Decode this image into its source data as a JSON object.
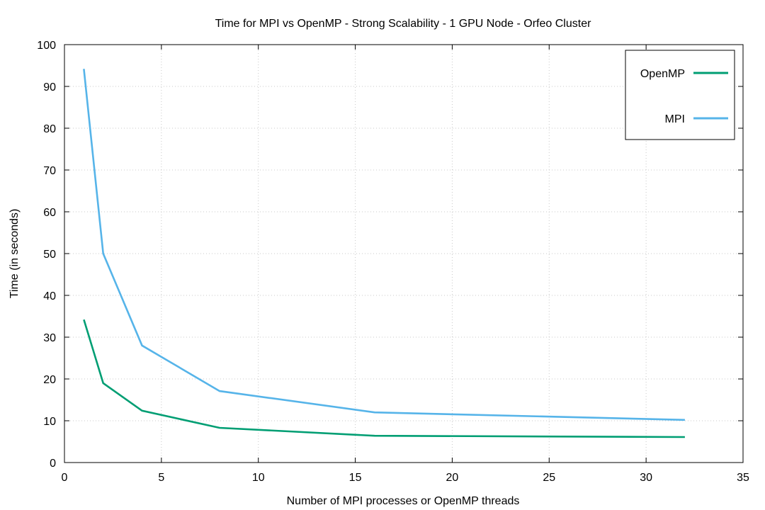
{
  "chart_data": {
    "type": "line",
    "title": "Time for MPI vs OpenMP - Strong Scalability - 1 GPU Node - Orfeo Cluster",
    "xlabel": "Number of MPI processes or OpenMP threads",
    "ylabel": "Time (in seconds)",
    "xlim": [
      0,
      35
    ],
    "ylim": [
      0,
      100
    ],
    "xticks": [
      0,
      5,
      10,
      15,
      20,
      25,
      30,
      35
    ],
    "yticks": [
      0,
      10,
      20,
      30,
      40,
      50,
      60,
      70,
      80,
      90,
      100
    ],
    "grid": true,
    "legend_position": "top-right",
    "series": [
      {
        "name": "OpenMP",
        "color": "#009e73",
        "x": [
          1,
          2,
          4,
          8,
          16,
          32
        ],
        "y": [
          34.2,
          19.0,
          12.4,
          8.3,
          6.4,
          6.1
        ]
      },
      {
        "name": "MPI",
        "color": "#56b4e9",
        "x": [
          1,
          2,
          4,
          8,
          16,
          32
        ],
        "y": [
          94.2,
          50.0,
          28.0,
          17.1,
          12.0,
          10.2
        ]
      }
    ]
  }
}
